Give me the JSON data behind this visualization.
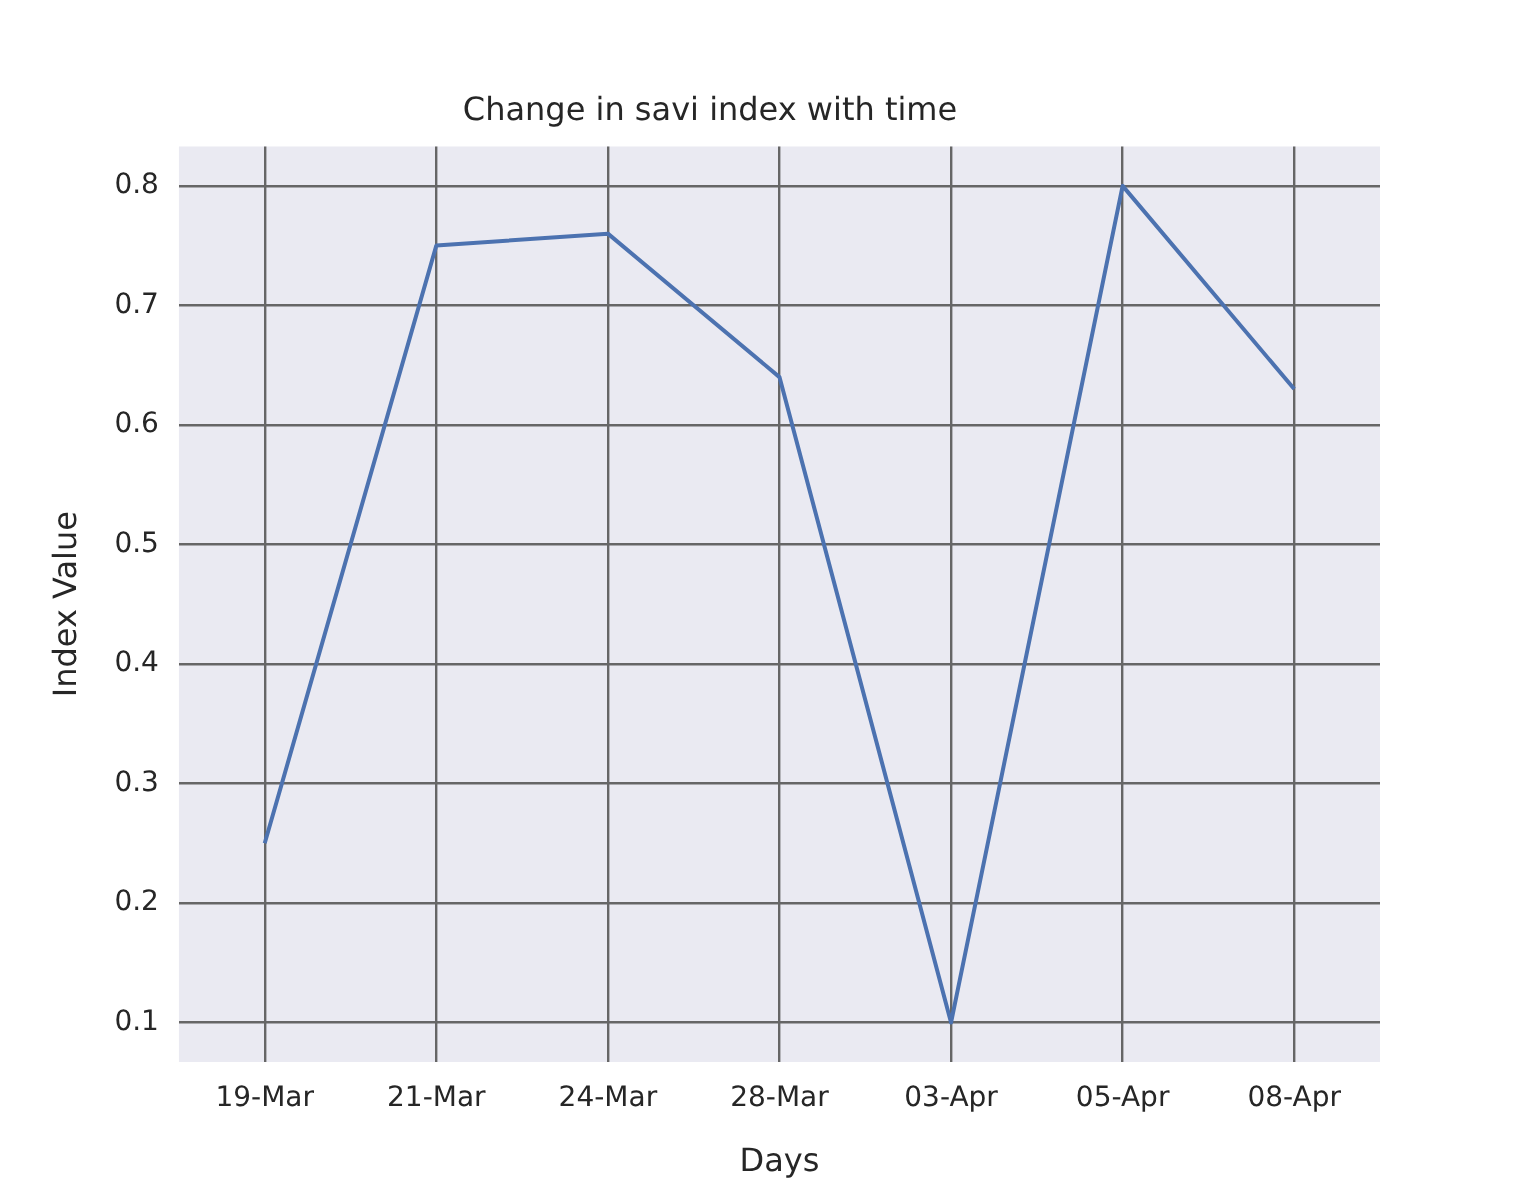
{
  "chart_data": {
    "type": "line",
    "title": "Change in savi index with time",
    "xlabel": "Days",
    "ylabel": "Index Value",
    "categories": [
      "19-Mar",
      "21-Mar",
      "24-Mar",
      "28-Mar",
      "03-Apr",
      "05-Apr",
      "08-Apr"
    ],
    "series": [
      {
        "color": "#4c72b0",
        "values": [
          0.25,
          0.75,
          0.76,
          0.64,
          0.1,
          0.8,
          0.63
        ]
      }
    ],
    "ylim": [
      0.067,
      0.833
    ],
    "yticks": [
      0.1,
      0.2,
      0.3,
      0.4,
      0.5,
      0.6,
      0.7,
      0.8
    ],
    "grid": true,
    "marker": "none",
    "line_style": "solid",
    "legend": false
  }
}
